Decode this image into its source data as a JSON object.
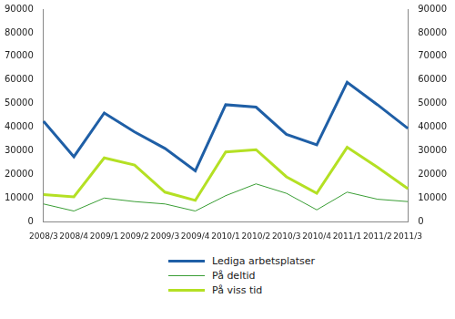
{
  "chart_data": {
    "type": "line",
    "categories": [
      "2008/3",
      "2008/4",
      "2009/1",
      "2009/2",
      "2009/3",
      "2009/4",
      "2010/1",
      "2010/2",
      "2010/3",
      "2010/4",
      "2011/1",
      "2011/2",
      "2011/3"
    ],
    "series": [
      {
        "name": "Lediga arbetsplatser",
        "color": "#1f5fa6",
        "values": [
          42500,
          27500,
          46000,
          38000,
          31000,
          21500,
          49500,
          48500,
          37000,
          32500,
          59000,
          49500,
          39500
        ]
      },
      {
        "name": "På deltid",
        "color": "#3a9e35",
        "values": [
          7500,
          4500,
          10000,
          8500,
          7500,
          4500,
          11000,
          16000,
          12000,
          5000,
          12500,
          9500,
          8500
        ]
      },
      {
        "name": "På viss tid",
        "color": "#b4e024",
        "values": [
          11500,
          10500,
          27000,
          24000,
          12500,
          9000,
          29500,
          30500,
          19000,
          12000,
          31500,
          23000,
          14000
        ]
      }
    ],
    "ylim": [
      0,
      90000
    ],
    "yticks": [
      0,
      10000,
      20000,
      30000,
      40000,
      50000,
      60000,
      70000,
      80000,
      90000
    ],
    "y2lim": [
      0,
      90000
    ],
    "y2ticks": [
      0,
      10000,
      20000,
      30000,
      40000,
      50000,
      60000,
      70000,
      80000,
      90000
    ],
    "grid": false,
    "legend": "bottom"
  }
}
